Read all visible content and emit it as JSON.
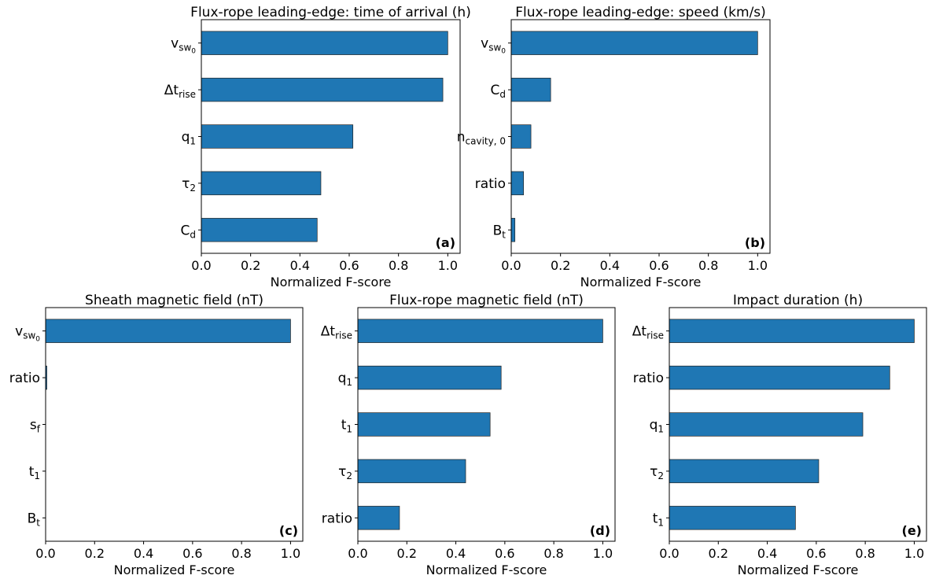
{
  "chart_data": [
    {
      "type": "bar",
      "orientation": "horizontal",
      "title": "Flux-rope leading-edge: time of arrival (h)",
      "xlabel": "Normalized F-score",
      "panel_label": "(a)",
      "xlim": [
        0,
        1.05
      ],
      "xticks": [
        "0.0",
        "0.2",
        "0.4",
        "0.6",
        "0.8",
        "1.0"
      ],
      "color": "#1f77b4",
      "categories": [
        {
          "base": "v",
          "sub": "sw",
          "subsub": "0"
        },
        {
          "base": "Δt",
          "sub": "rise"
        },
        {
          "base": "q",
          "sub": "1"
        },
        {
          "base": "τ",
          "sub": "2"
        },
        {
          "base": "C",
          "sub": "d"
        }
      ],
      "values": [
        1.0,
        0.98,
        0.615,
        0.485,
        0.47
      ]
    },
    {
      "type": "bar",
      "orientation": "horizontal",
      "title": "Flux-rope leading-edge: speed (km/s)",
      "xlabel": "Normalized F-score",
      "panel_label": "(b)",
      "xlim": [
        0,
        1.05
      ],
      "xticks": [
        "0.0",
        "0.2",
        "0.4",
        "0.6",
        "0.8",
        "1.0"
      ],
      "color": "#1f77b4",
      "categories": [
        {
          "base": "v",
          "sub": "sw",
          "subsub": "0"
        },
        {
          "base": "C",
          "sub": "d"
        },
        {
          "base": "n",
          "sub": "cavity, 0"
        },
        {
          "base": "ratio"
        },
        {
          "base": "B",
          "sub": "t"
        }
      ],
      "values": [
        1.0,
        0.16,
        0.08,
        0.05,
        0.015
      ]
    },
    {
      "type": "bar",
      "orientation": "horizontal",
      "title": "Sheath magnetic field (nT)",
      "xlabel": "Normalized F-score",
      "panel_label": "(c)",
      "xlim": [
        0,
        1.05
      ],
      "xticks": [
        "0.0",
        "0.2",
        "0.4",
        "0.6",
        "0.8",
        "1.0"
      ],
      "color": "#1f77b4",
      "categories": [
        {
          "base": "v",
          "sub": "sw",
          "subsub": "0"
        },
        {
          "base": "ratio"
        },
        {
          "base": "s",
          "sub": "f"
        },
        {
          "base": "t",
          "sub": "1"
        },
        {
          "base": "B",
          "sub": "t"
        }
      ],
      "values": [
        1.0,
        0.005,
        0.0,
        0.0,
        0.0
      ]
    },
    {
      "type": "bar",
      "orientation": "horizontal",
      "title": "Flux-rope magnetic field (nT)",
      "xlabel": "Normalized F-score",
      "panel_label": "(d)",
      "xlim": [
        0,
        1.05
      ],
      "xticks": [
        "0.0",
        "0.2",
        "0.4",
        "0.6",
        "0.8",
        "1.0"
      ],
      "color": "#1f77b4",
      "categories": [
        {
          "base": "Δt",
          "sub": "rise"
        },
        {
          "base": "q",
          "sub": "1"
        },
        {
          "base": "t",
          "sub": "1"
        },
        {
          "base": "τ",
          "sub": "2"
        },
        {
          "base": "ratio"
        }
      ],
      "values": [
        1.0,
        0.585,
        0.54,
        0.44,
        0.17
      ]
    },
    {
      "type": "bar",
      "orientation": "horizontal",
      "title": "Impact duration (h)",
      "xlabel": "Normalized F-score",
      "panel_label": "(e)",
      "xlim": [
        0,
        1.05
      ],
      "xticks": [
        "0.0",
        "0.2",
        "0.4",
        "0.6",
        "0.8",
        "1.0"
      ],
      "color": "#1f77b4",
      "categories": [
        {
          "base": "Δt",
          "sub": "rise"
        },
        {
          "base": "ratio"
        },
        {
          "base": "q",
          "sub": "1"
        },
        {
          "base": "τ",
          "sub": "2"
        },
        {
          "base": "t",
          "sub": "1"
        }
      ],
      "values": [
        1.0,
        0.9,
        0.79,
        0.61,
        0.515
      ]
    }
  ]
}
